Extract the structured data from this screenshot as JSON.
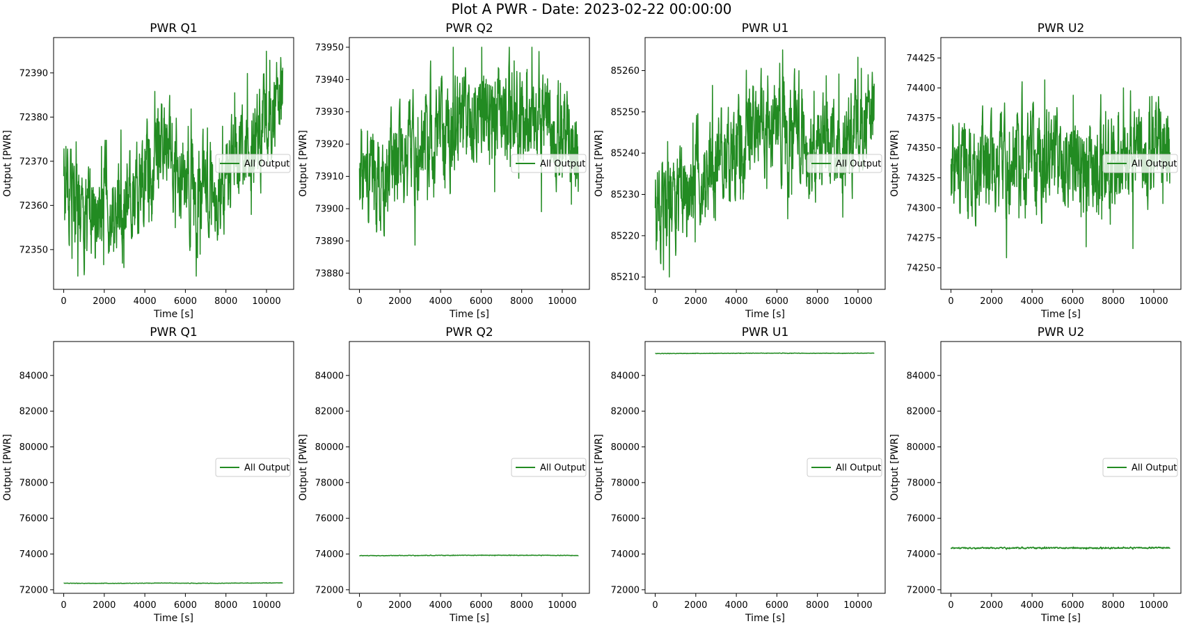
{
  "figure": {
    "title": "Plot A PWR - Date: 2023-02-22 00:00:00",
    "line_color": "#228B22"
  },
  "chart_data": [
    {
      "type": "line",
      "title": "PWR Q1",
      "xlabel": "Time [s]",
      "ylabel": "Output [PWR]",
      "legend": "All Output",
      "legend_loc": "center-right",
      "xlim": [
        -500,
        11340
      ],
      "ylim": [
        72341,
        72398
      ],
      "xticks": [
        0,
        2000,
        4000,
        6000,
        8000,
        10000
      ],
      "yticks": [
        72350,
        72360,
        72370,
        72380,
        72390
      ],
      "series": [
        {
          "name": "All Output",
          "x_start": 0,
          "x_end": 10800,
          "samples": 10800,
          "trend": [
            [
              0,
              72366
            ],
            [
              1000,
              72358
            ],
            [
              2000,
              72360
            ],
            [
              3000,
              72359
            ],
            [
              4000,
              72368
            ],
            [
              5000,
              72372
            ],
            [
              6000,
              72365
            ],
            [
              7000,
              72364
            ],
            [
              8000,
              72367
            ],
            [
              9000,
              72372
            ],
            [
              10000,
              72378
            ],
            [
              10800,
              72383
            ]
          ],
          "min": 72344,
          "max": 72395
        }
      ]
    },
    {
      "type": "line",
      "title": "PWR Q2",
      "xlabel": "Time [s]",
      "ylabel": "Output [PWR]",
      "legend": "All Output",
      "legend_loc": "center-right",
      "xlim": [
        -500,
        11340
      ],
      "ylim": [
        73875,
        73953
      ],
      "xticks": [
        0,
        2000,
        4000,
        6000,
        8000,
        10000
      ],
      "yticks": [
        73880,
        73890,
        73900,
        73910,
        73920,
        73930,
        73940,
        73950
      ],
      "series": [
        {
          "name": "All Output",
          "x_start": 0,
          "x_end": 10800,
          "samples": 10800,
          "trend": [
            [
              0,
              73912
            ],
            [
              1000,
              73905
            ],
            [
              2000,
              73914
            ],
            [
              3000,
              73918
            ],
            [
              4000,
              73922
            ],
            [
              5000,
              73925
            ],
            [
              6000,
              73930
            ],
            [
              7000,
              73931
            ],
            [
              8000,
              73927
            ],
            [
              9000,
              73926
            ],
            [
              10000,
              73922
            ],
            [
              10800,
              73920
            ]
          ],
          "min": 73878,
          "max": 73950
        }
      ]
    },
    {
      "type": "line",
      "title": "PWR U1",
      "xlabel": "Time [s]",
      "ylabel": "Output [PWR]",
      "legend": "All Output",
      "legend_loc": "center-right",
      "xlim": [
        -500,
        11340
      ],
      "ylim": [
        85207,
        85268
      ],
      "xticks": [
        0,
        2000,
        4000,
        6000,
        8000,
        10000
      ],
      "yticks": [
        85210,
        85220,
        85230,
        85240,
        85250,
        85260
      ],
      "series": [
        {
          "name": "All Output",
          "x_start": 0,
          "x_end": 10800,
          "samples": 10800,
          "trend": [
            [
              0,
              85226
            ],
            [
              1000,
              85230
            ],
            [
              2000,
              85233
            ],
            [
              3000,
              85238
            ],
            [
              4000,
              85242
            ],
            [
              5000,
              85244
            ],
            [
              6000,
              85248
            ],
            [
              7000,
              85246
            ],
            [
              8000,
              85242
            ],
            [
              9000,
              85240
            ],
            [
              10000,
              85245
            ],
            [
              10800,
              85248
            ]
          ],
          "min": 85210,
          "max": 85265
        }
      ]
    },
    {
      "type": "line",
      "title": "PWR U2",
      "xlabel": "Time [s]",
      "ylabel": "Output [PWR]",
      "legend": "All Output",
      "legend_loc": "center-right",
      "xlim": [
        -500,
        11340
      ],
      "ylim": [
        74232,
        74442
      ],
      "xticks": [
        0,
        2000,
        4000,
        6000,
        8000,
        10000
      ],
      "yticks": [
        74250,
        74275,
        74300,
        74325,
        74350,
        74375,
        74400,
        74425
      ],
      "series": [
        {
          "name": "All Output",
          "x_start": 0,
          "x_end": 10800,
          "samples": 10800,
          "trend": [
            [
              0,
              74335
            ],
            [
              1000,
              74325
            ],
            [
              2000,
              74330
            ],
            [
              3000,
              74335
            ],
            [
              4000,
              74338
            ],
            [
              5000,
              74336
            ],
            [
              6000,
              74340
            ],
            [
              7000,
              74333
            ],
            [
              8000,
              74335
            ],
            [
              9000,
              74338
            ],
            [
              10000,
              74350
            ],
            [
              10800,
              74360
            ]
          ],
          "min": 74240,
          "max": 74432
        }
      ]
    },
    {
      "type": "line",
      "title": "PWR Q1",
      "xlabel": "Time [s]",
      "ylabel": "Output [PWR]",
      "legend": "All Output",
      "legend_loc": "center-right",
      "xlim": [
        -500,
        11340
      ],
      "ylim": [
        71800,
        85900
      ],
      "xticks": [
        0,
        2000,
        4000,
        6000,
        8000,
        10000
      ],
      "yticks": [
        72000,
        74000,
        76000,
        78000,
        80000,
        82000,
        84000
      ],
      "series": [
        {
          "name": "All Output",
          "x_start": 0,
          "x_end": 10800,
          "samples": 10800,
          "trend": [
            [
              0,
              72366
            ],
            [
              10800,
              72383
            ]
          ],
          "min": 72344,
          "max": 72395
        }
      ]
    },
    {
      "type": "line",
      "title": "PWR Q2",
      "xlabel": "Time [s]",
      "ylabel": "Output [PWR]",
      "legend": "All Output",
      "legend_loc": "center-right",
      "xlim": [
        -500,
        11340
      ],
      "ylim": [
        71800,
        85900
      ],
      "xticks": [
        0,
        2000,
        4000,
        6000,
        8000,
        10000
      ],
      "yticks": [
        72000,
        74000,
        76000,
        78000,
        80000,
        82000,
        84000
      ],
      "series": [
        {
          "name": "All Output",
          "x_start": 0,
          "x_end": 10800,
          "samples": 10800,
          "trend": [
            [
              0,
              73912
            ],
            [
              10800,
              73920
            ]
          ],
          "min": 73878,
          "max": 73950
        }
      ]
    },
    {
      "type": "line",
      "title": "PWR U1",
      "xlabel": "Time [s]",
      "ylabel": "Output [PWR]",
      "legend": "All Output",
      "legend_loc": "center-right",
      "xlim": [
        -500,
        11340
      ],
      "ylim": [
        71800,
        85900
      ],
      "xticks": [
        0,
        2000,
        4000,
        6000,
        8000,
        10000
      ],
      "yticks": [
        72000,
        74000,
        76000,
        78000,
        80000,
        82000,
        84000
      ],
      "series": [
        {
          "name": "All Output",
          "x_start": 0,
          "x_end": 10800,
          "samples": 10800,
          "trend": [
            [
              0,
              85226
            ],
            [
              10800,
              85248
            ]
          ],
          "min": 85210,
          "max": 85265
        }
      ]
    },
    {
      "type": "line",
      "title": "PWR U2",
      "xlabel": "Time [s]",
      "ylabel": "Output [PWR]",
      "legend": "All Output",
      "legend_loc": "center-right",
      "xlim": [
        -500,
        11340
      ],
      "ylim": [
        71800,
        85900
      ],
      "xticks": [
        0,
        2000,
        4000,
        6000,
        8000,
        10000
      ],
      "yticks": [
        72000,
        74000,
        76000,
        78000,
        80000,
        82000,
        84000
      ],
      "series": [
        {
          "name": "All Output",
          "x_start": 0,
          "x_end": 10800,
          "samples": 10800,
          "trend": [
            [
              0,
              74335
            ],
            [
              10800,
              74360
            ]
          ],
          "min": 74240,
          "max": 74432
        }
      ]
    }
  ]
}
